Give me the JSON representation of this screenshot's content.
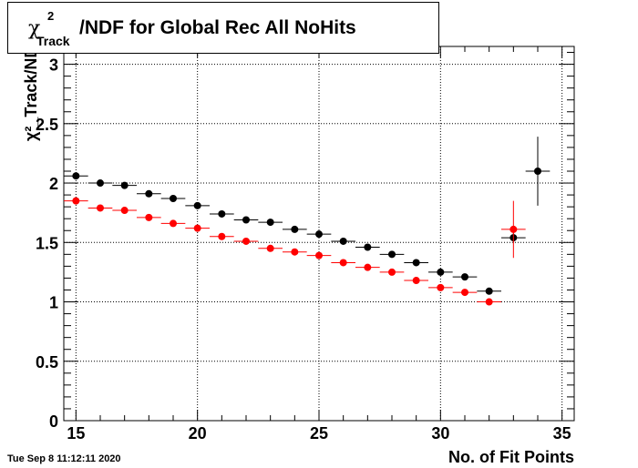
{
  "title": {
    "symbol": "χ",
    "superscript": "2",
    "subscript": "Track",
    "text": "/NDF for Global Rec All NoHits"
  },
  "timestamp": "Tue Sep  8 11:12:11 2020",
  "chart_data": {
    "type": "scatter",
    "title": "χ²_Track/NDF for Global Rec All NoHits",
    "xlabel": "No. of Fit Points",
    "ylabel": "χ²_Track/NDF",
    "xlim": [
      14.5,
      35.5
    ],
    "ylim": [
      0,
      3.15
    ],
    "grid": true,
    "x_ticks": [
      15,
      20,
      25,
      30,
      35
    ],
    "y_ticks": [
      0,
      0.5,
      1,
      1.5,
      2,
      2.5,
      3
    ],
    "x_tick_labels": [
      "15",
      "20",
      "25",
      "30",
      "35"
    ],
    "y_tick_labels": [
      "0",
      "0.5",
      "1",
      "1.5",
      "2",
      "2.5",
      "3"
    ],
    "series": [
      {
        "color": "#000000",
        "x": [
          15,
          16,
          17,
          18,
          19,
          20,
          21,
          22,
          23,
          24,
          25,
          26,
          27,
          28,
          29,
          30,
          31,
          32,
          33,
          34
        ],
        "y": [
          2.06,
          2.0,
          1.98,
          1.91,
          1.87,
          1.81,
          1.74,
          1.69,
          1.67,
          1.61,
          1.57,
          1.51,
          1.46,
          1.4,
          1.33,
          1.25,
          1.21,
          1.09,
          1.54,
          2.1
        ],
        "yerr": [
          0.01,
          0.01,
          0.01,
          0.01,
          0.01,
          0.01,
          0.01,
          0.01,
          0.01,
          0.01,
          0.01,
          0.01,
          0.01,
          0.01,
          0.01,
          0.01,
          0.01,
          0.01,
          0.04,
          0.29
        ]
      },
      {
        "color": "#ff0000",
        "x": [
          15,
          16,
          17,
          18,
          19,
          20,
          21,
          22,
          23,
          24,
          25,
          26,
          27,
          28,
          29,
          30,
          31,
          32,
          33
        ],
        "y": [
          1.85,
          1.79,
          1.77,
          1.71,
          1.66,
          1.62,
          1.55,
          1.51,
          1.45,
          1.42,
          1.39,
          1.33,
          1.29,
          1.25,
          1.18,
          1.12,
          1.08,
          1.0,
          1.61
        ],
        "yerr": [
          0.01,
          0.01,
          0.01,
          0.01,
          0.01,
          0.01,
          0.01,
          0.01,
          0.01,
          0.01,
          0.01,
          0.01,
          0.01,
          0.01,
          0.01,
          0.01,
          0.01,
          0.01,
          0.24
        ]
      }
    ]
  }
}
